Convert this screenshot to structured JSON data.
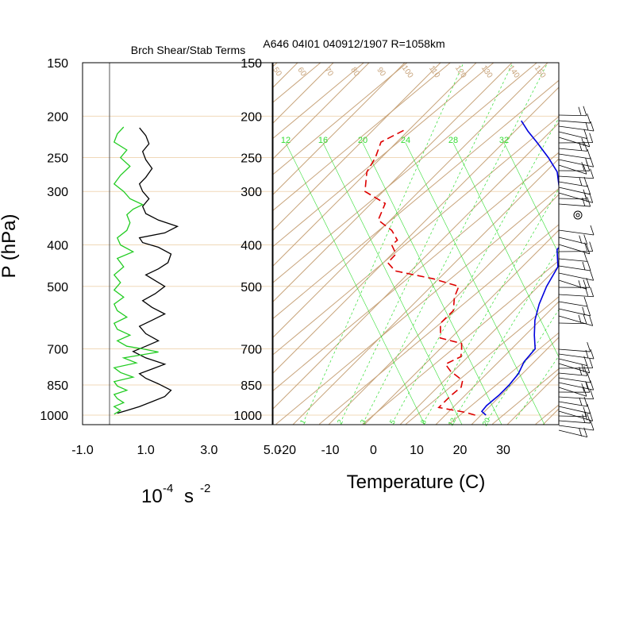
{
  "header": {
    "left_title": "Brch Shear/Stab Terms",
    "right_title": "A646 04I01 040912/1907 R=1058km"
  },
  "axes": {
    "y_label": "P (hPa)",
    "left_x_unit_base": "10",
    "left_x_unit_exp": "-4",
    "left_x_unit_s": "s",
    "left_x_unit_s_exp": "-2",
    "right_x_label": "Temperature (C)"
  },
  "colors": {
    "skewt_lines": "#c8a47c",
    "pressure_grid": "#f0d8b8",
    "mixing_ratio": "#33dd33",
    "temperature": "#0000dd",
    "dewpoint": "#dd0000",
    "shear_term": "#000000",
    "stability_term": "#22cc22"
  },
  "chart_data": [
    {
      "type": "line",
      "title": "Brch Shear/Stab Terms",
      "ylabel": "P (hPa)",
      "y_scale": "log",
      "ylim": [
        1050,
        150
      ],
      "y_ticks": [
        1000,
        850,
        700,
        500,
        400,
        300,
        250,
        200,
        150
      ],
      "y_tick_labels": [
        "1000",
        "850",
        "700",
        "500",
        "400",
        "300",
        "250",
        "200",
        "150"
      ],
      "xlim": [
        -1.0,
        5.0
      ],
      "x_ticks": [
        -1.0,
        1.0,
        3.0,
        5.0
      ],
      "x_tick_labels": [
        "-1.0",
        "1.0",
        "3.0",
        "5.0"
      ],
      "grid": true,
      "series": [
        {
          "color": "#000000",
          "points": [
            [
              0.1,
              990
            ],
            [
              0.4,
              975
            ],
            [
              0.8,
              955
            ],
            [
              1.2,
              930
            ],
            [
              1.6,
              905
            ],
            [
              1.8,
              875
            ],
            [
              1.4,
              845
            ],
            [
              1.0,
              820
            ],
            [
              0.8,
              800
            ],
            [
              1.2,
              780
            ],
            [
              1.6,
              760
            ],
            [
              1.0,
              735
            ],
            [
              0.6,
              710
            ],
            [
              1.0,
              690
            ],
            [
              1.4,
              670
            ],
            [
              1.0,
              645
            ],
            [
              0.8,
              620
            ],
            [
              1.2,
              600
            ],
            [
              1.6,
              580
            ],
            [
              1.2,
              560
            ],
            [
              0.9,
              540
            ],
            [
              1.3,
              520
            ],
            [
              1.6,
              500
            ],
            [
              1.3,
              485
            ],
            [
              1.0,
              470
            ],
            [
              1.4,
              455
            ],
            [
              1.7,
              440
            ],
            [
              1.8,
              420
            ],
            [
              1.4,
              405
            ],
            [
              0.9,
              395
            ],
            [
              0.8,
              385
            ],
            [
              1.6,
              375
            ],
            [
              2.0,
              362
            ],
            [
              1.4,
              350
            ],
            [
              1.0,
              338
            ],
            [
              0.9,
              325
            ],
            [
              1.1,
              312
            ],
            [
              0.9,
              300
            ],
            [
              0.8,
              288
            ],
            [
              1.0,
              278
            ],
            [
              1.2,
              265
            ],
            [
              1.0,
              253
            ],
            [
              0.9,
              242
            ],
            [
              1.1,
              232
            ],
            [
              1.0,
              222
            ],
            [
              0.8,
              213
            ]
          ]
        },
        {
          "color": "#22cc22",
          "points": [
            [
              0.0,
              995
            ],
            [
              0.2,
              975
            ],
            [
              0.0,
              955
            ],
            [
              0.3,
              935
            ],
            [
              0.1,
              915
            ],
            [
              0.0,
              895
            ],
            [
              0.4,
              875
            ],
            [
              0.1,
              855
            ],
            [
              0.0,
              835
            ],
            [
              0.6,
              815
            ],
            [
              0.2,
              795
            ],
            [
              0.0,
              775
            ],
            [
              0.7,
              755
            ],
            [
              0.3,
              735
            ],
            [
              1.4,
              712
            ],
            [
              0.9,
              700
            ],
            [
              0.4,
              690
            ],
            [
              0.1,
              670
            ],
            [
              0.5,
              650
            ],
            [
              0.1,
              630
            ],
            [
              0.0,
              610
            ],
            [
              0.4,
              590
            ],
            [
              0.1,
              570
            ],
            [
              0.0,
              550
            ],
            [
              0.3,
              530
            ],
            [
              0.0,
              510
            ],
            [
              0.2,
              490
            ],
            [
              0.0,
              470
            ],
            [
              0.3,
              450
            ],
            [
              0.1,
              430
            ],
            [
              0.6,
              415
            ],
            [
              0.2,
              400
            ],
            [
              0.1,
              385
            ],
            [
              0.4,
              370
            ],
            [
              0.5,
              355
            ],
            [
              0.4,
              340
            ],
            [
              0.6,
              330
            ],
            [
              0.9,
              322
            ],
            [
              0.5,
              312
            ],
            [
              0.3,
              300
            ],
            [
              0.0,
              288
            ],
            [
              0.2,
              275
            ],
            [
              0.5,
              262
            ],
            [
              0.2,
              250
            ],
            [
              0.4,
              240
            ],
            [
              0.0,
              230
            ],
            [
              0.1,
              220
            ],
            [
              0.3,
              212
            ]
          ]
        }
      ]
    },
    {
      "type": "line",
      "title": "A646 04I01 040912/1907 R=1058km",
      "xlabel": "Temperature (C)",
      "y_scale": "log",
      "ylim": [
        1050,
        150
      ],
      "y_ticks": [
        1000,
        850,
        700,
        500,
        400,
        300,
        250,
        200,
        150
      ],
      "y_tick_labels": [
        "1000",
        "850",
        "700",
        "500",
        "400",
        "300",
        "250",
        "200",
        "150"
      ],
      "x_ticks": [
        -20,
        -10,
        0,
        10,
        20,
        30
      ],
      "x_tick_labels": [
        "-20",
        "-10",
        "0",
        "10",
        "20",
        "30"
      ],
      "skew": "temperature isotherms tilted to the right with height",
      "mixing_ratio_labels_top": [
        "12",
        "16",
        "20",
        "24",
        "28",
        "32"
      ],
      "mixing_ratio_labels_bottom": [
        "1",
        "2",
        "3",
        "5",
        "8",
        "12",
        "20"
      ],
      "theta_labels": [
        "50",
        "60",
        "70",
        "80",
        "90",
        "100",
        "110",
        "120",
        "130",
        "140",
        "150"
      ],
      "grid": true,
      "series": [
        {
          "color": "#0000dd",
          "style": "solid",
          "points": [
            [
              26,
              1000
            ],
            [
              24,
              980
            ],
            [
              23.5,
              950
            ],
            [
              23.5,
              900
            ],
            [
              23,
              850
            ],
            [
              22,
              800
            ],
            [
              20,
              750
            ],
            [
              19,
              700
            ],
            [
              15,
              650
            ],
            [
              11,
              600
            ],
            [
              7.5,
              550
            ],
            [
              4.3,
              500
            ],
            [
              1.5,
              450
            ],
            [
              -3.5,
              410
            ],
            [
              -4.2,
              380
            ],
            [
              -9.5,
              350
            ],
            [
              -14,
              320
            ],
            [
              -19,
              300
            ],
            [
              -25,
              270
            ],
            [
              -31,
              250
            ],
            [
              -38,
              230
            ],
            [
              -43,
              217
            ],
            [
              -47.5,
              205
            ]
          ]
        },
        {
          "color": "#dd0000",
          "style": "dashed",
          "points": [
            [
              23.5,
              1000
            ],
            [
              20.5,
              985
            ],
            [
              13,
              960
            ],
            [
              12.5,
              900
            ],
            [
              12.5,
              860
            ],
            [
              11,
              830
            ],
            [
              5.7,
              790
            ],
            [
              2.5,
              760
            ],
            [
              4,
              730
            ],
            [
              2,
              700
            ],
            [
              0.5,
              680
            ],
            [
              -6,
              660
            ],
            [
              -7.5,
              640
            ],
            [
              -10,
              610
            ],
            [
              -10.5,
              570
            ],
            [
              -14,
              530
            ],
            [
              -16,
              500
            ],
            [
              -24,
              480
            ],
            [
              -35,
              460
            ],
            [
              -39,
              440
            ],
            [
              -39.5,
              420
            ],
            [
              -43,
              400
            ],
            [
              -43,
              390
            ],
            [
              -47,
              370
            ],
            [
              -53,
              350
            ],
            [
              -56,
              320
            ],
            [
              -64,
              300
            ],
            [
              -69,
              270
            ],
            [
              -71,
              250
            ],
            [
              -74,
              230
            ],
            [
              -72,
              216
            ]
          ]
        }
      ]
    }
  ]
}
